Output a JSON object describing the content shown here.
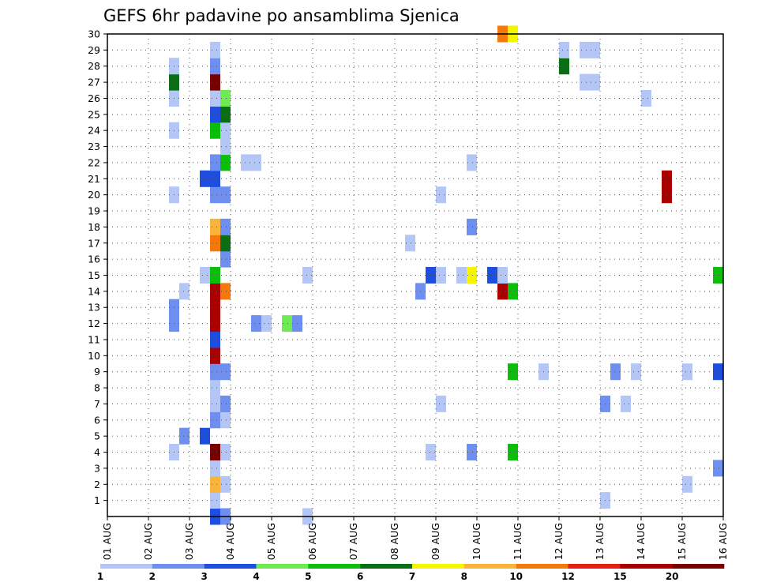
{
  "chart_data": {
    "type": "heatmap",
    "title": "GEFS 6hr padavine po ansamblima Sjenica",
    "xlabel": "",
    "ylabel": "",
    "x_tick_labels": [
      "01 AUG",
      "02 AUG",
      "03 AUG",
      "04 AUG",
      "05 AUG",
      "06 AUG",
      "07 AUG",
      "08 AUG",
      "09 AUG",
      "10 AUG",
      "11 AUG",
      "12 AUG",
      "13 AUG",
      "14 AUG",
      "15 AUG",
      "16 AUG"
    ],
    "y_tick_labels": [
      "1",
      "2",
      "3",
      "4",
      "5",
      "6",
      "7",
      "8",
      "9",
      "10",
      "11",
      "12",
      "13",
      "14",
      "15",
      "16",
      "17",
      "18",
      "19",
      "20",
      "21",
      "22",
      "23",
      "24",
      "25",
      "26",
      "27",
      "28",
      "29",
      "30"
    ],
    "xlim": [
      0,
      60
    ],
    "ylim": [
      0,
      30
    ],
    "grid": true,
    "x_step_unit": "6hr",
    "levels": [
      1,
      2,
      3,
      4,
      5,
      6,
      7,
      8,
      10,
      12,
      15,
      20
    ],
    "colors": [
      "#b4c6f6",
      "#6e8ef0",
      "#1e4ee0",
      "#6eeb50",
      "#0abe0a",
      "#0a6e14",
      "#f5f500",
      "#fab43c",
      "#f5780a",
      "#e61e14",
      "#aa0000",
      "#780000"
    ],
    "cells": [
      [
        10.5,
        0,
        3
      ],
      [
        11.5,
        0,
        2
      ],
      [
        19.5,
        0,
        1
      ],
      [
        10.5,
        1,
        1
      ],
      [
        48.5,
        1,
        1
      ],
      [
        10.5,
        2,
        8
      ],
      [
        11.5,
        2,
        1
      ],
      [
        56.5,
        2,
        1
      ],
      [
        10.5,
        3,
        1
      ],
      [
        59.5,
        3,
        2
      ],
      [
        6.5,
        4,
        1
      ],
      [
        10.5,
        4,
        12
      ],
      [
        11.5,
        4,
        1
      ],
      [
        31.5,
        4,
        1
      ],
      [
        35.5,
        4,
        2
      ],
      [
        39.5,
        4,
        5
      ],
      [
        7.5,
        5,
        2
      ],
      [
        9.5,
        5,
        3
      ],
      [
        10.5,
        6,
        2
      ],
      [
        11.5,
        6,
        1
      ],
      [
        10.5,
        7,
        1
      ],
      [
        11.5,
        7,
        2
      ],
      [
        32.5,
        7,
        1
      ],
      [
        48.5,
        7,
        2
      ],
      [
        50.5,
        7,
        1
      ],
      [
        10.5,
        8,
        1
      ],
      [
        10.5,
        9,
        2
      ],
      [
        11.5,
        9,
        2
      ],
      [
        39.5,
        9,
        5
      ],
      [
        42.5,
        9,
        1
      ],
      [
        49.5,
        9,
        2
      ],
      [
        51.5,
        9,
        1
      ],
      [
        56.5,
        9,
        1
      ],
      [
        59.5,
        9,
        3
      ],
      [
        10.5,
        10,
        11
      ],
      [
        10.5,
        11,
        3
      ],
      [
        6.5,
        12,
        2
      ],
      [
        10.5,
        12,
        11
      ],
      [
        14.5,
        12,
        2
      ],
      [
        15.5,
        12,
        1
      ],
      [
        17.5,
        12,
        4
      ],
      [
        18.5,
        12,
        2
      ],
      [
        6.5,
        13,
        2
      ],
      [
        10.5,
        13,
        11
      ],
      [
        7.5,
        14,
        1
      ],
      [
        10.5,
        14,
        11
      ],
      [
        11.5,
        14,
        9
      ],
      [
        30.5,
        14,
        2
      ],
      [
        38.5,
        14,
        11
      ],
      [
        39.5,
        14,
        5
      ],
      [
        9.5,
        15,
        1
      ],
      [
        10.5,
        15,
        5
      ],
      [
        19.5,
        15,
        1
      ],
      [
        31.5,
        15,
        3
      ],
      [
        32.5,
        15,
        1
      ],
      [
        34.5,
        15,
        1
      ],
      [
        35.5,
        15,
        7
      ],
      [
        37.5,
        15,
        3
      ],
      [
        38.5,
        15,
        1
      ],
      [
        59.5,
        15,
        5
      ],
      [
        11.5,
        16,
        2
      ],
      [
        10.5,
        17,
        9
      ],
      [
        11.5,
        17,
        6
      ],
      [
        29.5,
        17,
        1
      ],
      [
        10.5,
        18,
        8
      ],
      [
        11.5,
        18,
        2
      ],
      [
        35.5,
        18,
        2
      ],
      [
        6.5,
        20,
        1
      ],
      [
        10.5,
        20,
        2
      ],
      [
        11.5,
        20,
        2
      ],
      [
        32.5,
        20,
        1
      ],
      [
        54.5,
        20,
        11
      ],
      [
        9.5,
        21,
        3
      ],
      [
        10.5,
        21,
        3
      ],
      [
        54.5,
        21,
        11
      ],
      [
        10.5,
        22,
        2
      ],
      [
        11.5,
        22,
        5
      ],
      [
        13.5,
        22,
        1
      ],
      [
        14.5,
        22,
        1
      ],
      [
        35.5,
        22,
        1
      ],
      [
        11.5,
        23,
        1
      ],
      [
        6.5,
        24,
        1
      ],
      [
        10.5,
        24,
        5
      ],
      [
        11.5,
        24,
        1
      ],
      [
        10.5,
        25,
        3
      ],
      [
        11.5,
        25,
        6
      ],
      [
        6.5,
        26,
        1
      ],
      [
        10.5,
        26,
        1
      ],
      [
        11.5,
        26,
        4
      ],
      [
        52.5,
        26,
        1
      ],
      [
        6.5,
        27,
        6
      ],
      [
        10.5,
        27,
        12
      ],
      [
        46.5,
        27,
        1
      ],
      [
        47.5,
        27,
        1
      ],
      [
        6.5,
        28,
        1
      ],
      [
        10.5,
        28,
        2
      ],
      [
        44.5,
        28,
        6
      ],
      [
        10.5,
        29,
        1
      ],
      [
        44.5,
        29,
        1
      ],
      [
        46.5,
        29,
        1
      ],
      [
        47.5,
        29,
        1
      ],
      [
        38.5,
        30,
        9
      ],
      [
        39.5,
        30,
        7
      ]
    ]
  }
}
